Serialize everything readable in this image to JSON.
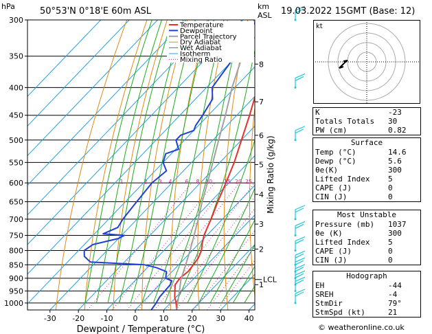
{
  "header": {
    "hpa_label": "hPa",
    "location": "50°53'N  0°18'E  60m  ASL",
    "km_label": "km",
    "asl_label": "ASL",
    "datetime": "19.03.2022  15GMT  (Base: 12)"
  },
  "legend": [
    "Temperature",
    "Dewpoint",
    "Parcel Trajectory",
    "Dry Adiabat",
    "Wet Adiabat",
    "Isotherm",
    "Mixing Ratio"
  ],
  "colors": {
    "temperature": "#e8302a",
    "dewpoint": "#1f3fd8",
    "parcel": "#a0a0a0",
    "dry_adiabat": "#e08a10",
    "wet_adiabat": "#1aaa1a",
    "isotherm": "#22a0e0",
    "mixing_ratio": "#cc1f9e",
    "wind": "#1ac8d8"
  },
  "chart_data": {
    "type": "line",
    "title": "50°53'N  0°18'E  60m  ASL",
    "xlabel": "Dewpoint / Temperature (°C)",
    "ylabel": "hPa",
    "right_label": "Mixing Ratio (g/kg)",
    "x_ticks": [
      -30,
      -20,
      -10,
      0,
      10,
      20,
      30,
      40
    ],
    "y_ticks": [
      300,
      350,
      400,
      450,
      500,
      550,
      600,
      650,
      700,
      750,
      800,
      850,
      900,
      950,
      1000
    ],
    "km_ticks": [
      {
        "km": "1",
        "p": 925
      },
      {
        "km": "2",
        "p": 795
      },
      {
        "km": "3",
        "p": 715
      },
      {
        "km": "4",
        "p": 630
      },
      {
        "km": "5",
        "p": 555
      },
      {
        "km": "6",
        "p": 490
      },
      {
        "km": "7",
        "p": 425
      },
      {
        "km": "8",
        "p": 362
      }
    ],
    "lcl": {
      "label": "LCL",
      "p": 905
    },
    "mixing_ratio_labels": [
      "1",
      "2",
      "3",
      "4",
      "6",
      "8",
      "10",
      "15",
      "20",
      "25"
    ],
    "series": [
      {
        "name": "Temperature",
        "points": [
          [
            1030,
            14.6
          ],
          [
            1000,
            12
          ],
          [
            975,
            9.5
          ],
          [
            950,
            7.5
          ],
          [
            925,
            5.5
          ],
          [
            900,
            5.0
          ],
          [
            875,
            5.6
          ],
          [
            850,
            5.2
          ],
          [
            825,
            4.6
          ],
          [
            800,
            3.2
          ],
          [
            775,
            1.0
          ],
          [
            750,
            -1.0
          ],
          [
            725,
            -2.5
          ],
          [
            700,
            -4.0
          ],
          [
            650,
            -7.5
          ],
          [
            600,
            -11
          ],
          [
            550,
            -15
          ],
          [
            500,
            -20
          ],
          [
            450,
            -25.5
          ],
          [
            400,
            -32
          ],
          [
            350,
            -39
          ],
          [
            300,
            -46
          ]
        ]
      },
      {
        "name": "Dewpoint",
        "points": [
          [
            1030,
            5.6
          ],
          [
            1000,
            5.0
          ],
          [
            975,
            4.2
          ],
          [
            950,
            4.0
          ],
          [
            925,
            3.8
          ],
          [
            910,
            3.0
          ],
          [
            900,
            0
          ],
          [
            875,
            -2
          ],
          [
            860,
            -7
          ],
          [
            850,
            -12
          ],
          [
            840,
            -32
          ],
          [
            820,
            -36
          ],
          [
            800,
            -38
          ],
          [
            780,
            -37
          ],
          [
            760,
            -30
          ],
          [
            750,
            -29
          ],
          [
            745,
            -37
          ],
          [
            725,
            -34
          ],
          [
            700,
            -35
          ],
          [
            650,
            -36
          ],
          [
            600,
            -37
          ],
          [
            570,
            -36
          ],
          [
            550,
            -40
          ],
          [
            530,
            -42
          ],
          [
            520,
            -39
          ],
          [
            505,
            -42
          ],
          [
            500,
            -43
          ],
          [
            490,
            -43
          ],
          [
            480,
            -40
          ],
          [
            470,
            -41
          ],
          [
            450,
            -42
          ],
          [
            420,
            -44
          ],
          [
            400,
            -48
          ],
          [
            380,
            -49
          ],
          [
            360,
            -50
          ],
          [
            350,
            -52
          ],
          [
            330,
            -54
          ],
          [
            300,
            -55
          ]
        ]
      },
      {
        "name": "Parcel Trajectory",
        "points": [
          [
            1030,
            14.6
          ],
          [
            905,
            5.8
          ],
          [
            850,
            2.5
          ],
          [
            800,
            -0.8
          ],
          [
            750,
            -4.5
          ],
          [
            700,
            -8.5
          ],
          [
            650,
            -13
          ],
          [
            600,
            -17.5
          ],
          [
            550,
            -22.5
          ],
          [
            500,
            -28
          ],
          [
            450,
            -34
          ],
          [
            400,
            -41
          ],
          [
            350,
            -48
          ],
          [
            300,
            -56
          ]
        ]
      }
    ],
    "wind_barbs_p": [
      1000,
      950,
      925,
      900,
      875,
      850,
      800,
      750,
      700,
      500,
      400,
      300
    ]
  },
  "indices": [
    {
      "label": "K",
      "value": "-23"
    },
    {
      "label": "Totals Totals",
      "value": "30"
    },
    {
      "label": "PW (cm)",
      "value": "0.82"
    }
  ],
  "surface": {
    "title": "Surface",
    "rows": [
      {
        "label": "Temp (°C)",
        "value": "14.6"
      },
      {
        "label": "Dewp (°C)",
        "value": "5.6"
      },
      {
        "label": "θe(K)",
        "value": "300"
      },
      {
        "label": "Lifted Index",
        "value": "5"
      },
      {
        "label": "CAPE (J)",
        "value": "0"
      },
      {
        "label": "CIN (J)",
        "value": "0"
      }
    ]
  },
  "most_unstable": {
    "title": "Most Unstable",
    "rows": [
      {
        "label": "Pressure (mb)",
        "value": "1037"
      },
      {
        "label": "θe (K)",
        "value": "300"
      },
      {
        "label": "Lifted Index",
        "value": "5"
      },
      {
        "label": "CAPE (J)",
        "value": "0"
      },
      {
        "label": "CIN (J)",
        "value": "0"
      }
    ]
  },
  "hodograph_table": {
    "title": "Hodograph",
    "rows": [
      {
        "label": "EH",
        "value": "-44"
      },
      {
        "label": "SREH",
        "value": "-4"
      },
      {
        "label": "StmDir",
        "value": "79°"
      },
      {
        "label": "StmSpd (kt)",
        "value": "21"
      }
    ]
  },
  "hodograph": {
    "label": "kt"
  },
  "footer": "© weatheronline.co.uk"
}
